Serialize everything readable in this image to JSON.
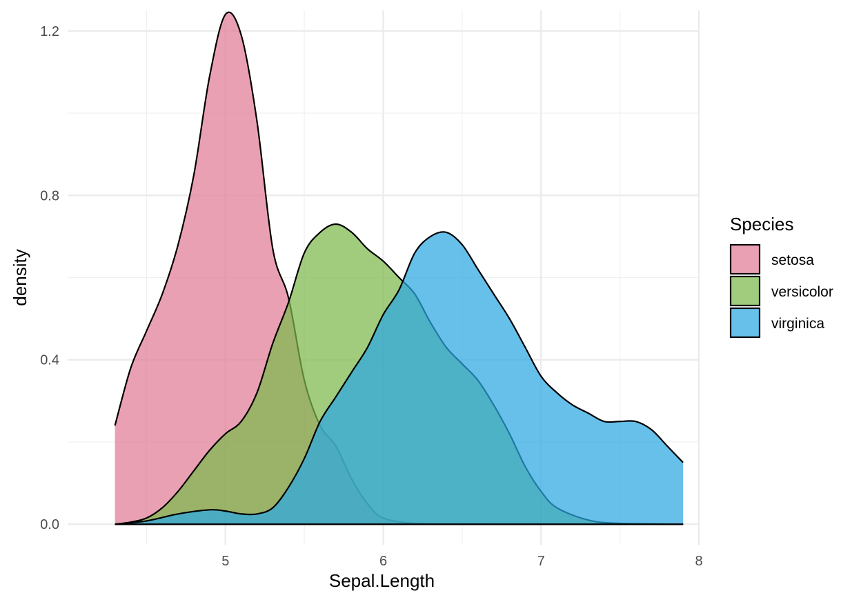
{
  "chart_data": {
    "type": "area",
    "subtype": "density",
    "title": "",
    "xlabel": "Sepal.Length",
    "ylabel": "density",
    "xlim": [
      4.3,
      7.9
    ],
    "ylim": [
      0,
      1.25
    ],
    "x_ticks": [
      5,
      6,
      7,
      8
    ],
    "x_tick_labels": [
      "5",
      "6",
      "7",
      "8"
    ],
    "y_ticks": [
      0.0,
      0.4,
      0.8,
      1.2
    ],
    "y_tick_labels": [
      "0.0",
      "0.4",
      "0.8",
      "1.2"
    ],
    "grid": true,
    "legend": {
      "title": "Species",
      "position": "right"
    },
    "series": [
      {
        "name": "setosa",
        "color": "#E27C96",
        "x": [
          4.3,
          4.4,
          4.5,
          4.6,
          4.7,
          4.8,
          4.9,
          5.0,
          5.1,
          5.2,
          5.3,
          5.4,
          5.5,
          5.6,
          5.7,
          5.8,
          5.9,
          6.0,
          6.2,
          6.5,
          7.0,
          7.5,
          7.9
        ],
        "y": [
          0.24,
          0.38,
          0.47,
          0.56,
          0.68,
          0.85,
          1.09,
          1.24,
          1.19,
          0.98,
          0.67,
          0.55,
          0.35,
          0.24,
          0.19,
          0.11,
          0.05,
          0.015,
          0.002,
          0.0,
          0.0,
          0.0,
          0.0
        ]
      },
      {
        "name": "versicolor",
        "color": "#7DB94C",
        "x": [
          4.3,
          4.4,
          4.5,
          4.6,
          4.7,
          4.8,
          4.9,
          5.0,
          5.1,
          5.2,
          5.3,
          5.4,
          5.5,
          5.6,
          5.7,
          5.8,
          5.9,
          6.0,
          6.1,
          6.2,
          6.3,
          6.4,
          6.5,
          6.6,
          6.7,
          6.8,
          6.9,
          7.0,
          7.1,
          7.3,
          7.5,
          7.9
        ],
        "y": [
          0.0,
          0.005,
          0.015,
          0.04,
          0.08,
          0.13,
          0.18,
          0.22,
          0.25,
          0.32,
          0.44,
          0.54,
          0.66,
          0.71,
          0.73,
          0.71,
          0.67,
          0.64,
          0.6,
          0.56,
          0.49,
          0.43,
          0.39,
          0.35,
          0.29,
          0.22,
          0.14,
          0.08,
          0.04,
          0.01,
          0.002,
          0.0
        ]
      },
      {
        "name": "virginica",
        "color": "#2CA8E2",
        "x": [
          4.3,
          4.5,
          4.7,
          4.9,
          5.0,
          5.1,
          5.2,
          5.3,
          5.4,
          5.5,
          5.6,
          5.7,
          5.8,
          5.9,
          6.0,
          6.1,
          6.2,
          6.3,
          6.4,
          6.5,
          6.6,
          6.7,
          6.8,
          6.9,
          7.0,
          7.1,
          7.2,
          7.3,
          7.4,
          7.5,
          7.6,
          7.7,
          7.8,
          7.9
        ],
        "y": [
          0.0,
          0.008,
          0.025,
          0.035,
          0.032,
          0.025,
          0.025,
          0.04,
          0.09,
          0.16,
          0.25,
          0.31,
          0.37,
          0.43,
          0.51,
          0.57,
          0.66,
          0.7,
          0.71,
          0.68,
          0.62,
          0.56,
          0.5,
          0.43,
          0.36,
          0.32,
          0.29,
          0.27,
          0.25,
          0.25,
          0.25,
          0.23,
          0.19,
          0.15
        ]
      }
    ]
  }
}
